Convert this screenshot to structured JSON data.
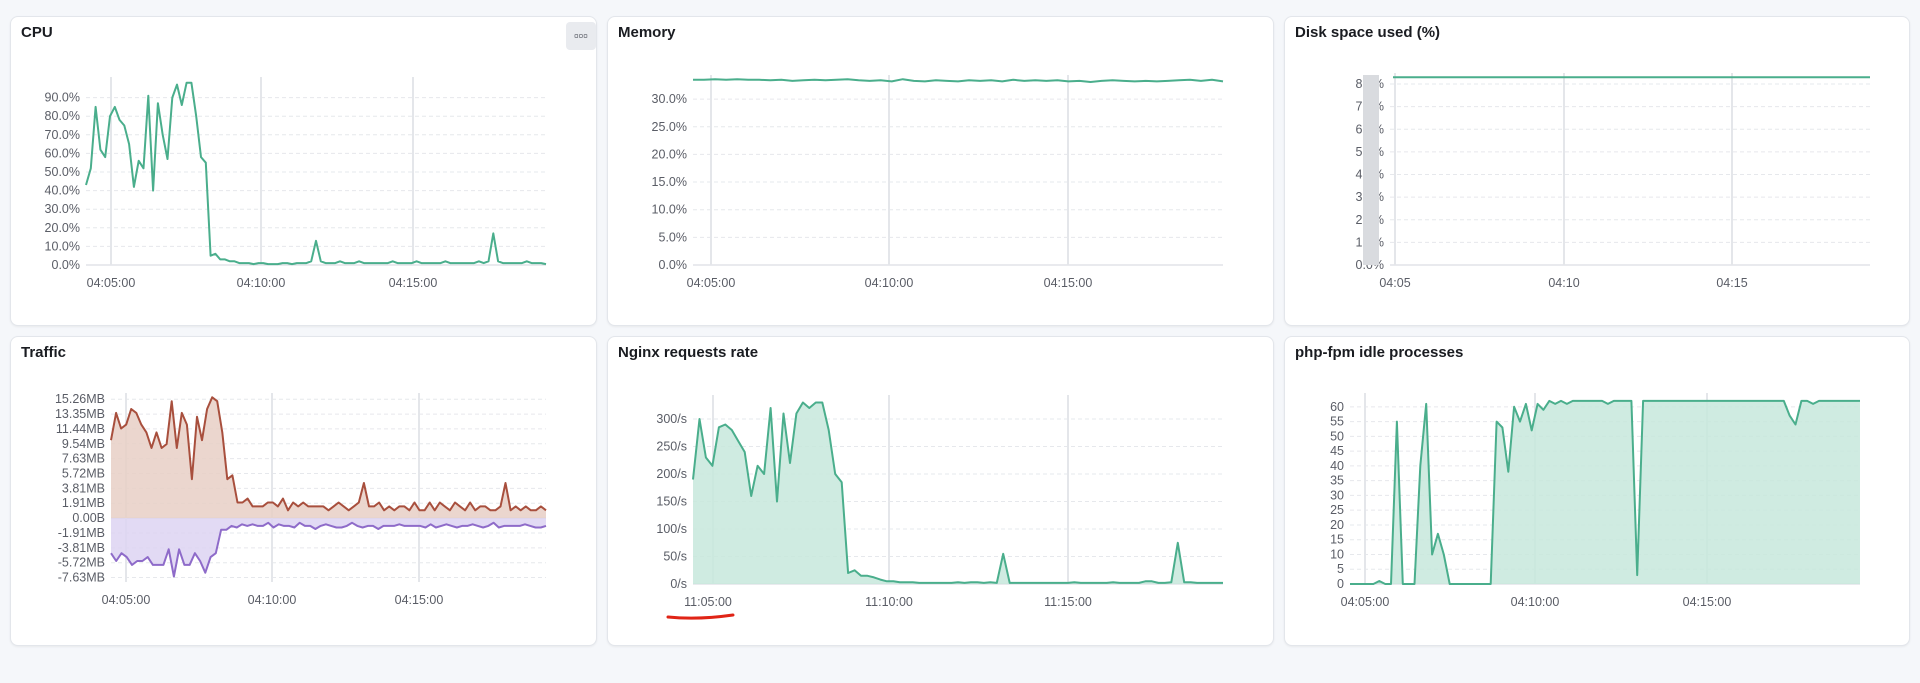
{
  "colors": {
    "green": "#4aae8c",
    "green_fill": "#c7e8dc",
    "red": "#a84f3d",
    "red_fill": "#e7cfc6",
    "purple": "#8e6bc9",
    "purple_fill": "#ddd3f2",
    "annotation": "#e02416"
  },
  "panels": {
    "cpu": {
      "title": "CPU",
      "menu_icon": "ellipsis-icon",
      "menu_label": "▫▫▫"
    },
    "memory": {
      "title": "Memory"
    },
    "disk": {
      "title": "Disk space used (%)"
    },
    "traffic": {
      "title": "Traffic"
    },
    "nginx": {
      "title": "Nginx requests rate"
    },
    "phpfpm": {
      "title": "php-fpm idle processes"
    }
  },
  "chart_data": [
    {
      "id": "cpu",
      "type": "line",
      "color": "#4aae8c",
      "x_ticks": [
        "04:05:00",
        "04:10:00",
        "04:15:00"
      ],
      "y_ticks": [
        "0.0%",
        "10.0%",
        "20.0%",
        "30.0%",
        "40.0%",
        "50.0%",
        "60.0%",
        "70.0%",
        "80.0%",
        "90.0%"
      ],
      "ylim": [
        0,
        100
      ],
      "y": [
        43,
        52,
        85,
        62,
        58,
        80,
        85,
        78,
        75,
        65,
        42,
        56,
        52,
        91,
        40,
        87,
        70,
        57,
        90,
        97,
        86,
        98,
        98,
        80,
        58,
        55,
        5,
        6,
        3,
        3,
        2,
        2,
        1,
        1,
        1,
        0.5,
        1,
        1,
        0.5,
        0.5,
        0.5,
        1,
        1,
        0.5,
        1,
        1,
        1,
        2,
        13,
        2,
        1,
        1,
        1,
        2,
        1,
        1,
        1,
        2,
        1,
        1,
        1,
        1,
        1,
        1,
        2,
        1,
        1,
        1,
        1,
        2,
        1,
        1,
        1,
        1,
        1,
        2,
        1,
        1,
        1,
        1,
        1,
        1,
        2,
        1,
        2,
        17,
        2,
        1,
        1,
        1,
        1,
        1,
        2,
        1,
        1,
        1,
        0.5
      ]
    },
    {
      "id": "memory",
      "type": "line",
      "color": "#4aae8c",
      "x_ticks": [
        "04:05:00",
        "04:10:00",
        "04:15:00"
      ],
      "y_ticks": [
        "0.0%",
        "5.0%",
        "10.0%",
        "15.0%",
        "20.0%",
        "25.0%",
        "30.0%"
      ],
      "ylim": [
        0,
        34
      ],
      "y": [
        33.5,
        33.5,
        33.6,
        33.5,
        33.6,
        33.5,
        33.5,
        33.4,
        33.5,
        33.3,
        33.4,
        33.5,
        33.4,
        33.5,
        33.6,
        33.4,
        33.3,
        33.4,
        33.2,
        33.6,
        33.3,
        33.2,
        33.4,
        33.3,
        33.2,
        33.4,
        33.3,
        33.4,
        33.2,
        33.5,
        33.3,
        33.4,
        33.3,
        33.4,
        33.2,
        33.3,
        33.1,
        33.3,
        33.4,
        33.3,
        33.2,
        33.3,
        33.2,
        33.3,
        33.4,
        33.5,
        33.3,
        33.5,
        33.2
      ]
    },
    {
      "id": "disk",
      "type": "line",
      "color": "#4aae8c",
      "x_ticks": [
        "04:05",
        "04:10",
        "04:15"
      ],
      "y_ticks": [
        "0.0%",
        "1.0%",
        "2.0%",
        "3.0%",
        "4.0%",
        "5.0%",
        "6.0%",
        "7.0%",
        "8.0%"
      ],
      "ylim": [
        0,
        8.4
      ],
      "y": [
        8.3,
        8.3,
        8.3,
        8.3,
        8.3
      ]
    },
    {
      "id": "traffic",
      "type": "area",
      "x_ticks": [
        "04:05:00",
        "04:10:00",
        "04:15:00"
      ],
      "y_ticks": [
        "-7.63MB",
        "-5.72MB",
        "-3.81MB",
        "-1.91MB",
        "0.00B",
        "1.91MB",
        "3.81MB",
        "5.72MB",
        "7.63MB",
        "9.54MB",
        "11.44MB",
        "13.35MB",
        "15.26MB"
      ],
      "ylim": [
        -8.2,
        15.8
      ],
      "series": [
        {
          "name": "",
          "color": "#a84f3d",
          "values": [
            10,
            13.5,
            11.5,
            12,
            14,
            13.5,
            12,
            11,
            9,
            11,
            9,
            9.5,
            15,
            9,
            13.5,
            12,
            5,
            13,
            10,
            14,
            15.5,
            15,
            11,
            5,
            5.5,
            2,
            2,
            2.5,
            1.5,
            1.5,
            1.5,
            2,
            2,
            1.5,
            2.5,
            1,
            2,
            1.5,
            2,
            1.5,
            1.5,
            1.5,
            1.5,
            1,
            1.5,
            2,
            1.5,
            1,
            1.5,
            2,
            4.5,
            1.5,
            1.5,
            2,
            1,
            1.5,
            1,
            1.5,
            1.5,
            1,
            2,
            1,
            1,
            2,
            1,
            2,
            1.5,
            1,
            2,
            1.5,
            1,
            2,
            1,
            1.5,
            1.5,
            1,
            1,
            1.5,
            4.5,
            1,
            1.5,
            1,
            1.5,
            1,
            1,
            1.5,
            1
          ]
        },
        {
          "name": "",
          "color": "#8e6bc9",
          "values": [
            -4.5,
            -5.5,
            -4.5,
            -5,
            -6,
            -5.5,
            -5.5,
            -5,
            -6,
            -6,
            -6,
            -4,
            -7.5,
            -4,
            -6,
            -6,
            -4.5,
            -5.5,
            -7,
            -5,
            -4.5,
            -1.5,
            -1.5,
            -1,
            -1.2,
            -0.8,
            -1,
            -0.8,
            -1,
            -1,
            -0.6,
            -1.2,
            -0.8,
            -1,
            -1,
            -1.2,
            -0.6,
            -1,
            -1,
            -1.4,
            -1,
            -0.8,
            -1,
            -1.2,
            -1.2,
            -1,
            -0.6,
            -1,
            -1.2,
            -1,
            -1,
            -1.4,
            -1,
            -1,
            -1,
            -0.8,
            -1,
            -1,
            -1,
            -1,
            -1.2,
            -0.8,
            -1.2,
            -1,
            -0.8,
            -1,
            -1.2,
            -1,
            -1,
            -0.8,
            -1,
            -1.2,
            -1,
            -0.6,
            -1.2,
            -1,
            -1,
            -1,
            -1,
            -0.8,
            -1,
            -1.2,
            -1.2,
            -1
          ]
        }
      ]
    },
    {
      "id": "nginx",
      "type": "area",
      "color": "#4aae8c",
      "x_ticks": [
        "11:05:00",
        "11:10:00",
        "11:15:00"
      ],
      "y_ticks": [
        "0/s",
        "50/s",
        "100/s",
        "150/s",
        "200/s",
        "250/s",
        "300/s"
      ],
      "ylim": [
        0,
        340
      ],
      "y": [
        190,
        300,
        230,
        215,
        285,
        290,
        280,
        260,
        240,
        160,
        215,
        200,
        320,
        150,
        310,
        220,
        310,
        330,
        320,
        330,
        330,
        280,
        200,
        185,
        20,
        25,
        15,
        15,
        12,
        8,
        5,
        5,
        3,
        3,
        3,
        2,
        2,
        2,
        2,
        2,
        2,
        3,
        2,
        3,
        3,
        2,
        3,
        2,
        55,
        2,
        2,
        2,
        2,
        2,
        2,
        2,
        2,
        2,
        2,
        3,
        2,
        2,
        2,
        2,
        2,
        3,
        2,
        2,
        2,
        2,
        5,
        5,
        2,
        2,
        3,
        75,
        3,
        3,
        2,
        2,
        2,
        2,
        2
      ]
    },
    {
      "id": "phpfpm",
      "type": "area",
      "color": "#4aae8c",
      "x_ticks": [
        "04:05:00",
        "04:10:00",
        "04:15:00"
      ],
      "y_ticks": [
        "0",
        "5",
        "10",
        "15",
        "20",
        "25",
        "30",
        "35",
        "40",
        "45",
        "50",
        "55",
        "60"
      ],
      "ylim": [
        0,
        64
      ],
      "y": [
        0,
        0,
        0,
        0,
        0,
        1,
        0,
        0,
        55,
        0,
        0,
        0,
        40,
        61,
        10,
        17,
        10,
        0,
        0,
        0,
        0,
        0,
        0,
        0,
        0,
        55,
        53,
        38,
        60,
        55,
        61,
        52,
        61,
        59,
        62,
        61,
        62,
        61,
        62,
        62,
        62,
        62,
        62,
        62,
        61,
        62,
        62,
        62,
        62,
        3,
        62,
        62,
        62,
        62,
        62,
        62,
        62,
        62,
        62,
        62,
        62,
        62,
        62,
        62,
        62,
        62,
        62,
        62,
        62,
        62,
        62,
        62,
        62,
        62,
        62,
        57,
        54,
        62,
        62,
        61,
        62,
        62,
        62,
        62,
        62,
        62,
        62,
        62
      ]
    }
  ]
}
